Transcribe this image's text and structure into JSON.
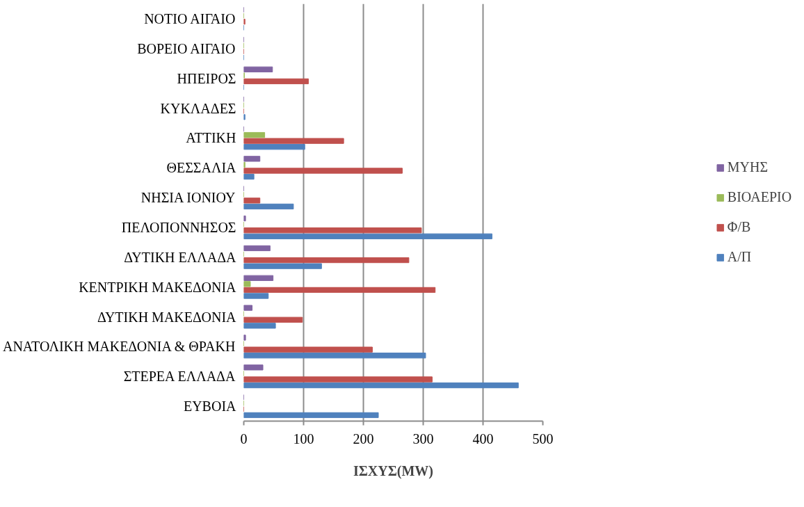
{
  "chart_data": {
    "type": "bar",
    "orientation": "horizontal",
    "xlabel": "ΙΣΧΥΣ(MW)",
    "categories": [
      "ΝΟΤΙΟ ΑΙΓΑΙΟ",
      "ΒΟΡΕΙΟ ΑΙΓΑΙΟ",
      "ΗΠΕΙΡΟΣ",
      "ΚΥΚΛΑΔΕΣ",
      "ΑΤΤΙΚΗ",
      "ΘΕΣΣΑΛΙΑ",
      "ΝΗΣΙΑ ΙΟΝΙΟΥ",
      "ΠΕΛΟΠΟΝΝΗΣΟΣ",
      "ΔΥΤΙΚΗ ΕΛΛΑΔΑ",
      "ΚΕΝΤΡΙΚΗ ΜΑΚΕΔΟΝΙΑ",
      "ΔΥΤΙΚΗ ΜΑΚΕΔΟΝΙΑ",
      "ΑΝΑΤΟΛΙΚΗ ΜΑΚΕΔΟΝΙΑ & ΘΡΑΚΗ",
      "ΣΤΕΡΕΑ ΕΛΛΑΔΑ",
      "ΕΥΒΟΙΑ"
    ],
    "series": [
      {
        "name": "Α/Π",
        "color": "#4f81bd",
        "values": [
          0,
          0,
          0,
          2,
          102,
          17,
          83,
          415,
          130,
          41,
          53,
          304,
          459,
          225
        ]
      },
      {
        "name": "Φ/Β",
        "color": "#c0504d",
        "values": [
          2,
          0,
          108,
          0,
          167,
          265,
          27,
          297,
          276,
          320,
          98,
          215,
          315,
          0
        ]
      },
      {
        "name": "ΒΙΟΑΕΡΙΟ",
        "color": "#9bbb59",
        "values": [
          0,
          0,
          1,
          0,
          35,
          2,
          0,
          0,
          0,
          11,
          0,
          0,
          0,
          0
        ]
      },
      {
        "name": "ΜΥΗΣ",
        "color": "#8064a2",
        "values": [
          0,
          0,
          48,
          0,
          0,
          27,
          0,
          3,
          44,
          49,
          14,
          3,
          32,
          0
        ]
      }
    ],
    "xlim": [
      0,
      500
    ],
    "xticks": [
      0,
      100,
      200,
      300,
      400,
      500
    ],
    "grid": "x",
    "legend": "right"
  }
}
